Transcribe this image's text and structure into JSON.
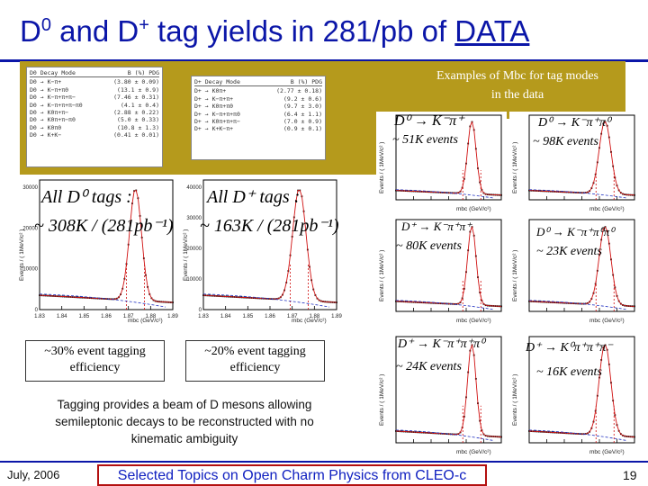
{
  "title": {
    "d0": "D",
    "d0_sup": "0",
    "and": " and D",
    "dplus_sup": "+",
    "rest": " tag yields in 281/pb of ",
    "data": "DATA"
  },
  "examples_caption": "Examples of Mbc for tag modes in the data",
  "d0_table": {
    "header": [
      "D0 Decay Mode",
      "B (%) PDG"
    ],
    "rows": [
      [
        "D0 → K−π+",
        "(3.80 ± 0.09)"
      ],
      [
        "D0 → K−π+π0",
        "(13.1 ± 0.9)"
      ],
      [
        "D0 → K−π+π+π−",
        "(7.46 ± 0.31)"
      ],
      [
        "D0 → K−π+π+π−π0",
        "(4.1 ± 0.4)"
      ],
      [
        "D0 → K0π+π−",
        "(2.88 ± 0.22)"
      ],
      [
        "D0 → K0π+π−π0",
        "(5.0 ± 0.33)"
      ],
      [
        "D0 → K0π0",
        "(10.8 ± 1.3)"
      ],
      [
        "D0 → K+K−",
        "(0.41 ± 0.01)"
      ]
    ]
  },
  "dplus_table": {
    "header": [
      "D+ Decay Mode",
      "B (%) PDG"
    ],
    "rows": [
      [
        "D+ → K0π+",
        "(2.77 ± 0.18)"
      ],
      [
        "D+ → K−π+π+",
        "(9.2 ± 0.6)"
      ],
      [
        "D+ → K0π+π0",
        "(9.7 ± 3.0)"
      ],
      [
        "D+ → K−π+π+π0",
        "(6.4 ± 1.1)"
      ],
      [
        "D+ → K0π+π+π−",
        "(7.0 ± 0.9)"
      ],
      [
        "D+ → K+K−π+",
        "(0.9 ± 0.1)"
      ]
    ]
  },
  "big_plots": [
    {
      "tag_label": "All D⁰ tags :",
      "yield_label": "~ 308K / (281pb⁻¹)",
      "ylabel": "Events / ( 1MeV/c² )",
      "xlabel": "mbc (GeV/c²)",
      "yticks": [
        "30000",
        "20000",
        "10000",
        "0"
      ],
      "xticks": [
        "1.83",
        "1.84",
        "1.85",
        "1.86",
        "1.87",
        "1.88",
        "1.89"
      ]
    },
    {
      "tag_label": "All D⁺ tags :",
      "yield_label": "~ 163K / (281pb⁻¹)",
      "ylabel": "Events / ( 1MeV/c² )",
      "xlabel": "mbc (GeV/c²)",
      "yticks": [
        "40000",
        "30000",
        "20000",
        "10000",
        "0"
      ],
      "xticks": [
        "1.83",
        "1.84",
        "1.85",
        "1.86",
        "1.87",
        "1.88",
        "1.89"
      ]
    }
  ],
  "efficiency": [
    {
      "line1": "~30% event tagging",
      "line2": "efficiency"
    },
    {
      "line1": "~20% event tagging",
      "line2": "efficiency"
    }
  ],
  "tagging_note": "Tagging provides a beam of D mesons allowing semileptonic decays to be reconstructed with no kinematic ambiguity",
  "small_plots": [
    {
      "mode": "D⁰ → K⁻π⁺",
      "yield": "~ 51K events",
      "ylabel": "Events / ( 1MeV/c² )",
      "xlabel": "mbc (GeV/c²)"
    },
    {
      "mode": "D⁰ → K⁻π⁺π⁰",
      "yield": "~ 98K events",
      "ylabel": "Events / ( 1MeV/c² )",
      "xlabel": "mbc (GeV/c²)"
    },
    {
      "mode": "D⁺ → K⁻π⁺π⁺",
      "yield": "~ 80K events",
      "ylabel": "Events / ( 1MeV/c² )",
      "xlabel": "mbc (GeV/c²)"
    },
    {
      "mode": "D⁰ → K⁻π⁺π⁰π⁰",
      "yield": "~ 23K events",
      "ylabel": "Events / ( 1MeV/c² )",
      "xlabel": "mbc (GeV/c²)"
    },
    {
      "mode": "D⁺ → K⁻π⁺π⁺π⁰",
      "yield": "~ 24K events",
      "ylabel": "Events / ( 1MeV/c² )",
      "xlabel": "mbc (GeV/c²)"
    },
    {
      "mode": "D⁺ → K⁰π⁺π⁺π⁻",
      "yield": "~ 16K events",
      "ylabel": "Events / ( 1MeV/c² )",
      "xlabel": "mbc (GeV/c²)"
    }
  ],
  "footer": {
    "date": "July, 2006",
    "talk": "Selected Topics on Open Charm Physics from CLEO-c",
    "page": "19"
  },
  "colors": {
    "title": "#0b16a8",
    "olive": "#b59a1c",
    "fit": "#d01010",
    "footer_box": "#b31010"
  }
}
